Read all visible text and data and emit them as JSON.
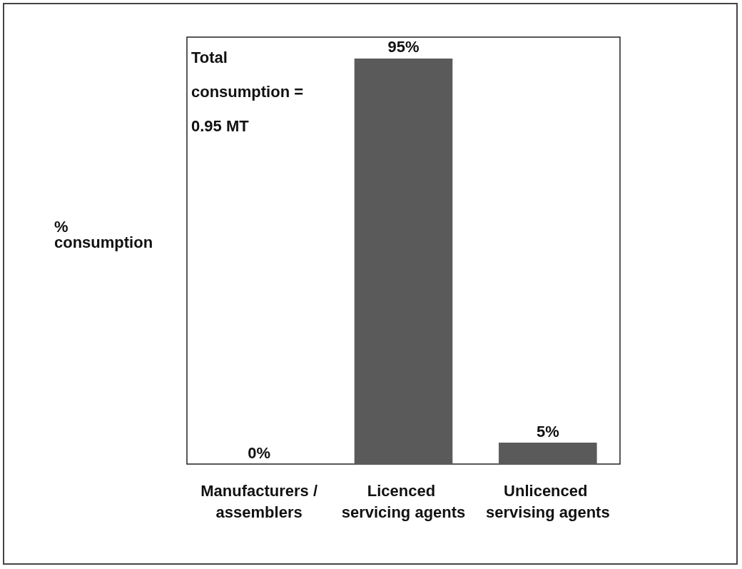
{
  "chart_data": {
    "type": "bar",
    "ylabel": "% consumption",
    "categories": [
      "Manufacturers /assemblers",
      "Licenced servicing agents",
      "Unlicenced servising agents"
    ],
    "values": [
      0,
      95,
      5
    ],
    "value_labels": [
      "0%",
      "95%",
      "5%"
    ],
    "color": "#5a5a5a",
    "ylim": [
      0,
      100
    ],
    "tick_labels": "x",
    "annotations": [
      "Total consumption = 0.95 MT"
    ]
  }
}
